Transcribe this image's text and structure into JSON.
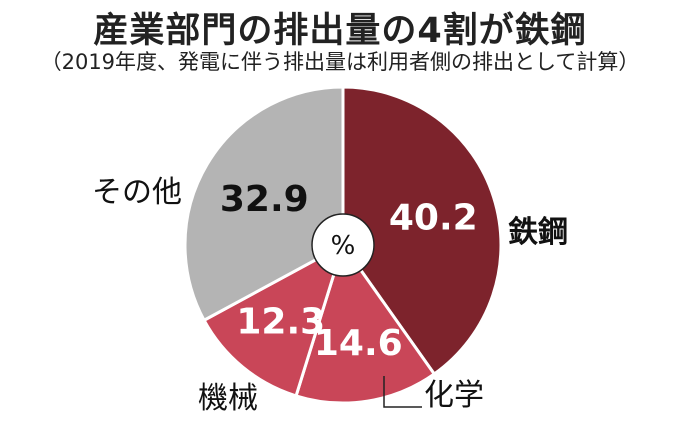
{
  "chart_data": {
    "type": "pie",
    "title": "産業部門の排出量の4割が鉄鋼",
    "subtitle": "（2019年度、発電に伴う排出量は利用者側の排出として計算）",
    "unit": "%",
    "slices": [
      {
        "label": "鉄鋼",
        "value": 40.2,
        "value_text": "40.2",
        "color": "#7d232c",
        "value_color": "#ffffff",
        "label_color": "#111111",
        "label_bold": true
      },
      {
        "label": "化学",
        "value": 14.6,
        "value_text": "14.6",
        "color": "#c94658",
        "value_color": "#ffffff",
        "label_color": "#111111",
        "label_bold": false
      },
      {
        "label": "機械",
        "value": 12.3,
        "value_text": "12.3",
        "color": "#c94658",
        "value_color": "#ffffff",
        "label_color": "#111111",
        "label_bold": false
      },
      {
        "label": "その他",
        "value": 32.9,
        "value_text": "32.9",
        "color": "#b4b4b4",
        "value_color": "#111111",
        "label_color": "#111111",
        "label_bold": false
      }
    ]
  }
}
